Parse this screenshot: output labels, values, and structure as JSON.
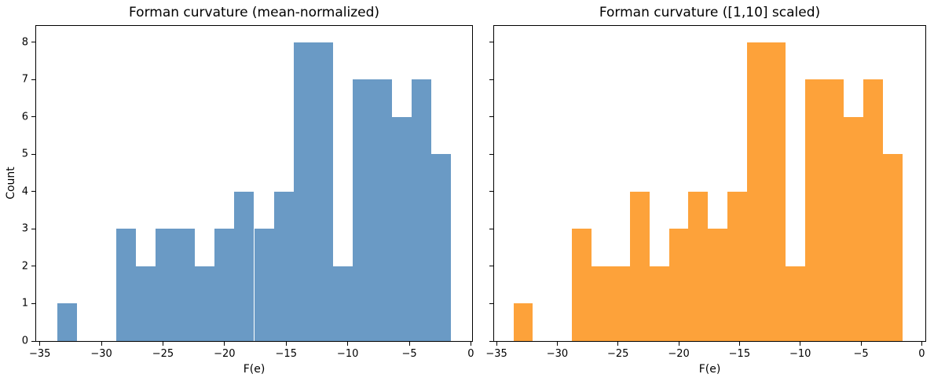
{
  "figure": {
    "background": "#ffffff",
    "spine_color": "#000000",
    "text_color": "#000000"
  },
  "chart_data": [
    {
      "type": "histogram",
      "title": "Forman curvature (mean-normalized)",
      "xlabel": "F(e)",
      "ylabel": "Count",
      "bar_color": "#6a9ac5",
      "bin_edges": [
        -33.6,
        -32.0,
        -30.4,
        -28.8,
        -27.2,
        -25.6,
        -24.0,
        -22.4,
        -20.8,
        -19.2,
        -17.6,
        -16.0,
        -14.4,
        -12.8,
        -11.2,
        -9.6,
        -8.0,
        -6.4,
        -4.8,
        -3.2,
        -1.6
      ],
      "counts": [
        1,
        0,
        0,
        3,
        2,
        3,
        3,
        2,
        3,
        4,
        3,
        4,
        8,
        8,
        2,
        7,
        7,
        6,
        7,
        5
      ],
      "x_ticks": [
        -35,
        -30,
        -25,
        -20,
        -15,
        -10,
        -5,
        0
      ],
      "x_tick_labels": [
        "−35",
        "−30",
        "−25",
        "−20",
        "−15",
        "−10",
        "−5",
        "0"
      ],
      "y_ticks": [
        0,
        1,
        2,
        3,
        4,
        5,
        6,
        7,
        8
      ],
      "y_tick_labels": [
        "0",
        "1",
        "2",
        "3",
        "4",
        "5",
        "6",
        "7",
        "8"
      ],
      "show_y_tick_labels": true,
      "xlim": [
        -35.3,
        0.1
      ],
      "ylim": [
        0,
        8.44
      ],
      "grid": false,
      "legend": null
    },
    {
      "type": "histogram",
      "title": "Forman curvature ([1,10] scaled)",
      "xlabel": "F(e)",
      "ylabel": "",
      "bar_color": "#fda23a",
      "bin_edges": [
        -33.6,
        -32.0,
        -30.4,
        -28.8,
        -27.2,
        -25.6,
        -24.0,
        -22.4,
        -20.8,
        -19.2,
        -17.6,
        -16.0,
        -14.4,
        -12.8,
        -11.2,
        -9.6,
        -8.0,
        -6.4,
        -4.8,
        -3.2,
        -1.6
      ],
      "counts": [
        1,
        0,
        0,
        3,
        2,
        2,
        4,
        2,
        3,
        4,
        3,
        4,
        8,
        8,
        2,
        7,
        7,
        6,
        7,
        5
      ],
      "x_ticks": [
        -35,
        -30,
        -25,
        -20,
        -15,
        -10,
        -5,
        0
      ],
      "x_tick_labels": [
        "−35",
        "−30",
        "−25",
        "−20",
        "−15",
        "−10",
        "−5",
        "0"
      ],
      "y_ticks": [
        0,
        1,
        2,
        3,
        4,
        5,
        6,
        7,
        8
      ],
      "y_tick_labels": [
        "0",
        "1",
        "2",
        "3",
        "4",
        "5",
        "6",
        "7",
        "8"
      ],
      "show_y_tick_labels": false,
      "xlim": [
        -35.2,
        0.3
      ],
      "ylim": [
        0,
        8.44
      ],
      "grid": false,
      "legend": null
    }
  ]
}
